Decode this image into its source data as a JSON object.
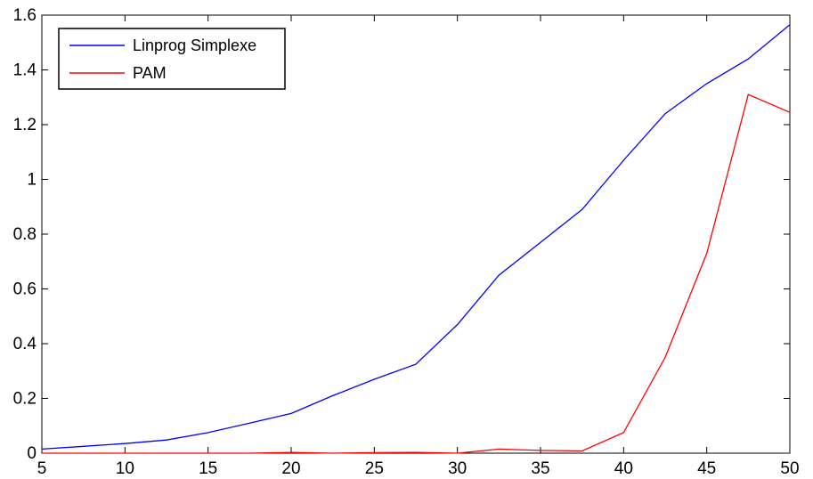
{
  "chart_data": {
    "type": "line",
    "title": "",
    "xlabel": "",
    "ylabel": "",
    "xlim": [
      5,
      50
    ],
    "ylim": [
      0,
      1.6
    ],
    "grid": false,
    "legend_position": "top-left",
    "x_ticks": [
      "5",
      "10",
      "15",
      "20",
      "25",
      "30",
      "35",
      "40",
      "45",
      "50"
    ],
    "y_ticks": [
      "0",
      "0.2",
      "0.4",
      "0.6",
      "0.8",
      "1",
      "1.2",
      "1.4",
      "1.6"
    ],
    "series": [
      {
        "name": "Linprog Simplexe",
        "color": "#0000ff",
        "x": [
          5,
          7.5,
          10,
          12.5,
          15,
          17.5,
          20,
          22.5,
          25,
          27.5,
          30,
          32.5,
          35,
          37.5,
          40,
          42.5,
          45,
          47.5,
          50
        ],
        "y": [
          0.015,
          0.025,
          0.035,
          0.048,
          0.075,
          0.11,
          0.145,
          0.21,
          0.27,
          0.325,
          0.47,
          0.65,
          0.77,
          0.89,
          1.07,
          1.24,
          1.35,
          1.44,
          1.565
        ]
      },
      {
        "name": "PAM",
        "color": "#ff0000",
        "x": [
          5,
          7.5,
          10,
          12.5,
          15,
          17.5,
          20,
          22.5,
          25,
          27.5,
          30,
          32.5,
          35,
          37.5,
          40,
          42.5,
          45,
          47.5,
          50
        ],
        "y": [
          0.0,
          0.0,
          0.0,
          0.0,
          0.0,
          0.0,
          0.003,
          0.0,
          0.002,
          0.003,
          0.0,
          0.015,
          0.01,
          0.008,
          0.075,
          0.35,
          0.73,
          1.31,
          1.245
        ]
      }
    ]
  }
}
